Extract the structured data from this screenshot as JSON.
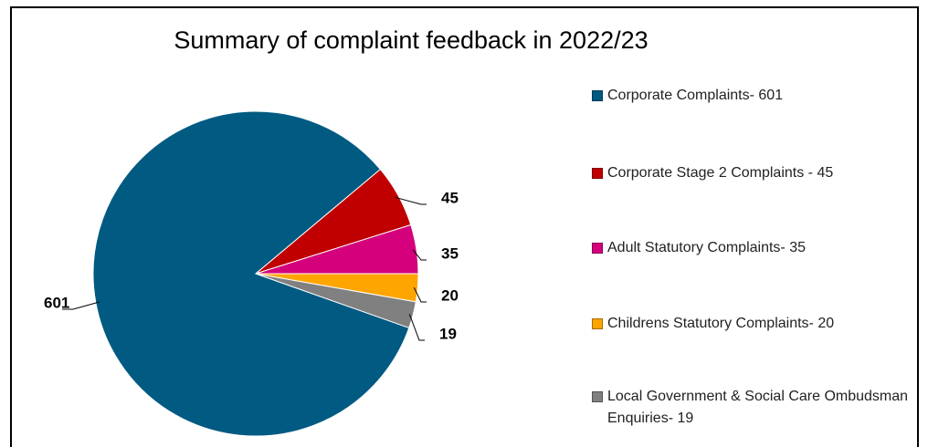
{
  "chart_data": {
    "type": "pie",
    "title": "Summary of complaint feedback in 2022/23",
    "categories": [
      "Corporate Complaints- 601",
      "Corporate Stage 2 Complaints - 45",
      "Adult Statutory Complaints- 35",
      "Childrens Statutory Complaints- 20",
      "Local Government & Social Care Ombudsman Enquiries- 19"
    ],
    "values": [
      601,
      45,
      35,
      20,
      19
    ],
    "colors": [
      "#005a82",
      "#c00000",
      "#d4007c",
      "#ffa500",
      "#808080"
    ],
    "legend": "right"
  }
}
